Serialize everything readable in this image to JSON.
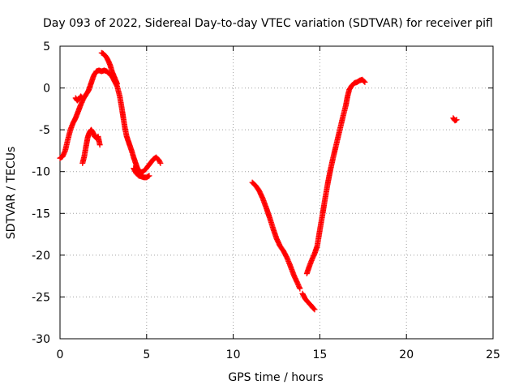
{
  "chart_data": {
    "type": "scatter",
    "title": "Day 093 of 2022, Sidereal Day-to-day VTEC variation (SDTVAR) for receiver pifl",
    "xlabel": "GPS time / hours",
    "ylabel": "SDTVAR / TECUs",
    "xlim": [
      0,
      25
    ],
    "ylim": [
      -30,
      5
    ],
    "xticks": [
      0,
      5,
      10,
      15,
      20,
      25
    ],
    "yticks": [
      5,
      0,
      -5,
      -10,
      -15,
      -20,
      -25,
      -30
    ],
    "grid": true,
    "marker": "+",
    "color": "#ff0000",
    "segments": [
      [
        [
          0.0,
          -8.4
        ],
        [
          0.15,
          -8.2
        ],
        [
          0.3,
          -7.5
        ],
        [
          0.45,
          -6.2
        ],
        [
          0.6,
          -5.0
        ],
        [
          0.75,
          -4.2
        ],
        [
          0.9,
          -3.6
        ],
        [
          1.05,
          -2.8
        ],
        [
          1.2,
          -2.0
        ],
        [
          1.35,
          -1.3
        ],
        [
          1.5,
          -0.8
        ],
        [
          1.65,
          -0.3
        ],
        [
          1.8,
          0.6
        ],
        [
          1.95,
          1.5
        ],
        [
          2.1,
          2.0
        ],
        [
          2.25,
          2.1
        ],
        [
          2.4,
          2.0
        ],
        [
          2.55,
          2.1
        ],
        [
          2.7,
          2.0
        ],
        [
          2.85,
          1.7
        ],
        [
          3.0,
          1.4
        ],
        [
          3.15,
          0.8
        ],
        [
          3.3,
          0.2
        ],
        [
          3.45,
          -1.0
        ],
        [
          3.55,
          -2.2
        ],
        [
          3.65,
          -3.5
        ],
        [
          3.75,
          -4.8
        ],
        [
          3.85,
          -5.8
        ],
        [
          3.95,
          -6.4
        ],
        [
          4.05,
          -7.0
        ],
        [
          4.15,
          -7.6
        ],
        [
          4.25,
          -8.3
        ],
        [
          4.35,
          -8.9
        ],
        [
          4.45,
          -9.5
        ],
        [
          4.55,
          -9.9
        ],
        [
          4.65,
          -10.1
        ],
        [
          4.8,
          -10.0
        ],
        [
          4.95,
          -9.7
        ],
        [
          5.1,
          -9.3
        ],
        [
          5.25,
          -8.9
        ],
        [
          5.4,
          -8.5
        ],
        [
          5.55,
          -8.3
        ],
        [
          5.7,
          -8.6
        ],
        [
          5.8,
          -9.0
        ]
      ],
      [
        [
          0.9,
          -1.2
        ],
        [
          1.0,
          -1.5
        ],
        [
          1.1,
          -1.3
        ],
        [
          1.2,
          -1.0
        ],
        [
          1.3,
          -1.2
        ]
      ],
      [
        [
          1.3,
          -9.0
        ],
        [
          1.4,
          -8.2
        ],
        [
          1.5,
          -7.0
        ],
        [
          1.6,
          -5.9
        ],
        [
          1.7,
          -5.3
        ],
        [
          1.8,
          -5.0
        ],
        [
          1.9,
          -5.3
        ],
        [
          2.0,
          -5.8
        ],
        [
          2.1,
          -6.0
        ],
        [
          2.2,
          -5.8
        ],
        [
          2.3,
          -6.8
        ]
      ],
      [
        [
          2.4,
          4.2
        ],
        [
          2.5,
          4.1
        ],
        [
          2.6,
          3.9
        ],
        [
          2.7,
          3.6
        ],
        [
          2.8,
          3.2
        ],
        [
          2.9,
          2.7
        ],
        [
          3.0,
          2.0
        ],
        [
          3.1,
          1.5
        ],
        [
          3.2,
          1.0
        ],
        [
          3.3,
          0.5
        ]
      ],
      [
        [
          4.25,
          -9.6
        ],
        [
          4.4,
          -10.2
        ],
        [
          4.55,
          -10.5
        ],
        [
          4.7,
          -10.6
        ],
        [
          4.85,
          -10.7
        ],
        [
          5.0,
          -10.7
        ],
        [
          5.15,
          -10.5
        ]
      ],
      [
        [
          11.1,
          -11.3
        ],
        [
          11.3,
          -11.7
        ],
        [
          11.5,
          -12.3
        ],
        [
          11.7,
          -13.2
        ],
        [
          11.9,
          -14.3
        ],
        [
          12.1,
          -15.5
        ],
        [
          12.3,
          -16.8
        ],
        [
          12.5,
          -18.0
        ],
        [
          12.7,
          -18.9
        ],
        [
          12.9,
          -19.5
        ],
        [
          13.1,
          -20.3
        ],
        [
          13.3,
          -21.3
        ],
        [
          13.5,
          -22.4
        ],
        [
          13.7,
          -23.3
        ],
        [
          13.85,
          -24.0
        ]
      ],
      [
        [
          14.0,
          -24.6
        ],
        [
          14.15,
          -25.2
        ],
        [
          14.3,
          -25.6
        ],
        [
          14.45,
          -25.9
        ],
        [
          14.6,
          -26.3
        ],
        [
          14.7,
          -26.5
        ]
      ],
      [
        [
          14.25,
          -22.2
        ],
        [
          14.4,
          -21.3
        ],
        [
          14.55,
          -20.5
        ],
        [
          14.7,
          -19.8
        ],
        [
          14.85,
          -18.9
        ],
        [
          15.0,
          -17.0
        ],
        [
          15.15,
          -15.2
        ],
        [
          15.3,
          -13.3
        ],
        [
          15.45,
          -11.5
        ],
        [
          15.6,
          -9.9
        ],
        [
          15.75,
          -8.5
        ],
        [
          15.9,
          -7.2
        ],
        [
          16.05,
          -5.9
        ],
        [
          16.2,
          -4.6
        ],
        [
          16.35,
          -3.3
        ],
        [
          16.5,
          -2.1
        ],
        [
          16.6,
          -1.0
        ],
        [
          16.7,
          -0.2
        ],
        [
          16.85,
          0.3
        ],
        [
          17.0,
          0.6
        ],
        [
          17.15,
          0.7
        ],
        [
          17.3,
          0.9
        ],
        [
          17.45,
          1.0
        ],
        [
          17.6,
          0.7
        ]
      ],
      [
        [
          22.7,
          -3.6
        ],
        [
          22.8,
          -3.9
        ],
        [
          22.9,
          -3.8
        ]
      ]
    ]
  }
}
